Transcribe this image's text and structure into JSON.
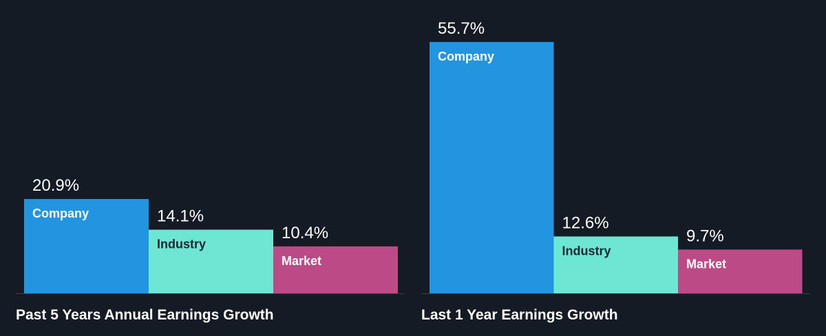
{
  "colors": {
    "background": "#151b24",
    "company": "#2394df",
    "industry": "#6ee6d4",
    "market": "#bb4a87",
    "baseline": "#3a414b",
    "label_light": "#ffffff",
    "label_dark": "#1b2430"
  },
  "chart_data": [
    {
      "type": "bar",
      "title": "Past 5 Years Annual Earnings Growth",
      "categories": [
        "Company",
        "Industry",
        "Market"
      ],
      "values": [
        20.9,
        14.1,
        10.4
      ],
      "value_labels": [
        "20.9%",
        "14.1%",
        "10.4%"
      ],
      "ylim": [
        0,
        55.7
      ],
      "grid": false,
      "legend": "none"
    },
    {
      "type": "bar",
      "title": "Last 1 Year Earnings Growth",
      "categories": [
        "Company",
        "Industry",
        "Market"
      ],
      "values": [
        55.7,
        12.6,
        9.7
      ],
      "value_labels": [
        "55.7%",
        "12.6%",
        "9.7%"
      ],
      "ylim": [
        0,
        55.7
      ],
      "grid": false,
      "legend": "none"
    }
  ]
}
